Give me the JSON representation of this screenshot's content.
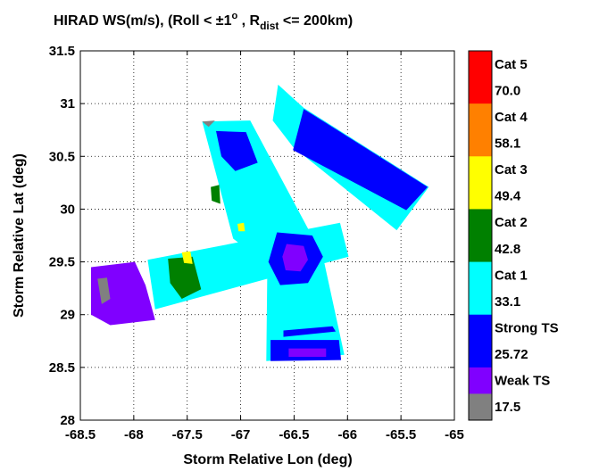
{
  "chart_data": {
    "type": "heatmap",
    "title": "HIRAD WS(m/s), (Roll < ± 1°, R_dist <= 200km)",
    "title_parts": {
      "main": "HIRAD WS(m/s), (Roll < ",
      "pm": "±",
      "deg": "1",
      "deg_sup": "o",
      "mid": " , R",
      "sub": "dist",
      "tail": " <= 200km)"
    },
    "xlabel": "Storm Relative Lon (deg)",
    "ylabel": "Storm Relative Lat (deg)",
    "xlim": [
      -68.5,
      -65
    ],
    "ylim": [
      28,
      31.5
    ],
    "xticks": [
      -68.5,
      -68,
      -67.5,
      -67,
      -66.5,
      -66,
      -65.5,
      -65
    ],
    "yticks": [
      28,
      28.5,
      29,
      29.5,
      30,
      30.5,
      31,
      31.5
    ],
    "grid": true,
    "colorbar": {
      "levels": [
        {
          "label": "Cat 5",
          "color": "#ff0000"
        },
        {
          "label": "70.0",
          "color": "#ff0000"
        },
        {
          "label": "Cat 4",
          "color": "#ff8000"
        },
        {
          "label": "58.1",
          "color": "#ff8000"
        },
        {
          "label": "Cat 3",
          "color": "#ffff00"
        },
        {
          "label": "49.4",
          "color": "#ffff00"
        },
        {
          "label": "Cat 2",
          "color": "#008000"
        },
        {
          "label": "42.8",
          "color": "#008000"
        },
        {
          "label": "Cat 1",
          "color": "#00ffff"
        },
        {
          "label": "33.1",
          "color": "#00ffff"
        },
        {
          "label": "Strong TS",
          "color": "#0000ff"
        },
        {
          "label": "25.72",
          "color": "#0000ff"
        },
        {
          "label": "Weak TS",
          "color": "#8000ff"
        },
        {
          "label": "17.5",
          "color": "#808080"
        }
      ]
    },
    "colors": {
      "cat5": "#ff0000",
      "cat4": "#ff8000",
      "cat3": "#ffff00",
      "cat2": "#008000",
      "cat1": "#00ffff",
      "strong_ts": "#0000ff",
      "weak_ts": "#8000ff",
      "below": "#808080"
    },
    "swaths": [
      {
        "category": "weak_ts",
        "polygon": [
          [
            -68.4,
            29.45
          ],
          [
            -67.99,
            29.5
          ],
          [
            -67.89,
            29.28
          ],
          [
            -67.8,
            28.95
          ],
          [
            -68.22,
            28.9
          ],
          [
            -68.4,
            29.0
          ]
        ]
      },
      {
        "category": "cat1",
        "polygon": [
          [
            -67.87,
            29.52
          ],
          [
            -66.07,
            29.87
          ],
          [
            -65.99,
            29.55
          ],
          [
            -67.8,
            29.05
          ]
        ]
      },
      {
        "category": "cat1",
        "polygon": [
          [
            -67.36,
            30.83
          ],
          [
            -66.91,
            30.84
          ],
          [
            -66.23,
            29.55
          ],
          [
            -66.03,
            28.62
          ],
          [
            -66.76,
            28.56
          ],
          [
            -66.75,
            29.47
          ],
          [
            -67.07,
            29.72
          ]
        ]
      },
      {
        "category": "cat1",
        "polygon": [
          [
            -66.65,
            31.18
          ],
          [
            -66.41,
            30.96
          ],
          [
            -65.24,
            30.21
          ],
          [
            -65.54,
            29.8
          ],
          [
            -66.51,
            30.59
          ],
          [
            -66.7,
            30.84
          ]
        ]
      },
      {
        "category": "strong_ts",
        "polygon": [
          [
            -66.66,
            29.78
          ],
          [
            -66.33,
            29.75
          ],
          [
            -66.23,
            29.55
          ],
          [
            -66.37,
            29.3
          ],
          [
            -66.63,
            29.28
          ],
          [
            -66.74,
            29.5
          ]
        ]
      },
      {
        "category": "weak_ts",
        "polygon": [
          [
            -66.57,
            29.67
          ],
          [
            -66.41,
            29.65
          ],
          [
            -66.37,
            29.52
          ],
          [
            -66.44,
            29.41
          ],
          [
            -66.58,
            29.42
          ],
          [
            -66.61,
            29.55
          ]
        ]
      },
      {
        "category": "cat2",
        "polygon": [
          [
            -67.68,
            29.53
          ],
          [
            -67.45,
            29.55
          ],
          [
            -67.37,
            29.24
          ],
          [
            -67.55,
            29.15
          ],
          [
            -67.66,
            29.3
          ]
        ]
      },
      {
        "category": "cat3",
        "polygon": [
          [
            -67.55,
            29.59
          ],
          [
            -67.47,
            29.6
          ],
          [
            -67.45,
            29.48
          ],
          [
            -67.53,
            29.49
          ]
        ]
      },
      {
        "category": "strong_ts",
        "polygon": [
          [
            -66.51,
            30.56
          ],
          [
            -66.41,
            30.95
          ],
          [
            -65.25,
            30.21
          ],
          [
            -65.45,
            29.99
          ]
        ]
      },
      {
        "category": "strong_ts",
        "polygon": [
          [
            -67.23,
            30.74
          ],
          [
            -66.95,
            30.73
          ],
          [
            -66.84,
            30.44
          ],
          [
            -67.05,
            30.36
          ],
          [
            -67.18,
            30.5
          ]
        ]
      },
      {
        "category": "cat2",
        "polygon": [
          [
            -67.28,
            30.21
          ],
          [
            -67.2,
            30.23
          ],
          [
            -67.19,
            30.05
          ],
          [
            -67.27,
            30.08
          ]
        ]
      },
      {
        "category": "cat3",
        "polygon": [
          [
            -67.03,
            29.86
          ],
          [
            -66.97,
            29.87
          ],
          [
            -66.96,
            29.79
          ],
          [
            -67.02,
            29.79
          ]
        ]
      },
      {
        "category": "strong_ts",
        "polygon": [
          [
            -66.72,
            28.76
          ],
          [
            -66.08,
            28.76
          ],
          [
            -66.06,
            28.57
          ],
          [
            -66.72,
            28.56
          ]
        ]
      },
      {
        "category": "weak_ts",
        "polygon": [
          [
            -66.55,
            28.68
          ],
          [
            -66.2,
            28.68
          ],
          [
            -66.2,
            28.6
          ],
          [
            -66.55,
            28.6
          ]
        ]
      },
      {
        "category": "below",
        "polygon": [
          [
            -68.34,
            29.34
          ],
          [
            -68.25,
            29.35
          ],
          [
            -68.22,
            29.15
          ],
          [
            -68.3,
            29.1
          ]
        ]
      },
      {
        "category": "below",
        "polygon": [
          [
            -67.36,
            30.83
          ],
          [
            -67.24,
            30.84
          ],
          [
            -67.3,
            30.78
          ]
        ]
      },
      {
        "category": "strong_ts",
        "polygon": [
          [
            -66.6,
            28.85
          ],
          [
            -66.14,
            28.89
          ],
          [
            -66.11,
            28.84
          ],
          [
            -66.6,
            28.79
          ]
        ]
      }
    ]
  }
}
